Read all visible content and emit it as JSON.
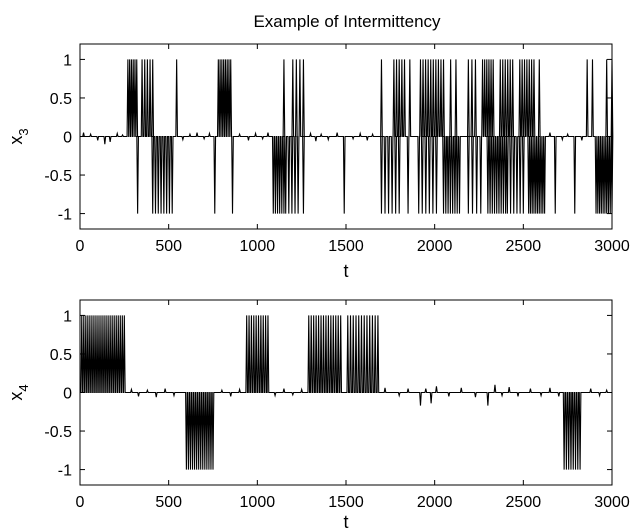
{
  "figure": {
    "title": "Example of Intermittency"
  },
  "chart_data": [
    {
      "type": "line",
      "title": "Example of Intermittency",
      "xlabel": "t",
      "ylabel_base": "x",
      "ylabel_sub": "3",
      "xlim": [
        0,
        3000
      ],
      "ylim": [
        -1.2,
        1.2
      ],
      "grid": false,
      "legend": "none",
      "x_ticks": [
        0,
        500,
        1000,
        1500,
        2000,
        2500,
        3000
      ],
      "x_tick_labels": [
        "0",
        "500",
        "1000",
        "1500",
        "2000",
        "2500",
        "3000"
      ],
      "y_ticks": [
        1,
        0.5,
        0,
        -0.5,
        -1
      ],
      "y_tick_labels": [
        "1",
        "0.5",
        "0",
        "-0.5",
        "-1"
      ],
      "series": [
        {
          "color": "#000000",
          "bursts_up": [
            [
              270,
              320,
              6
            ],
            [
              350,
              410,
              5
            ],
            [
              545,
              555,
              1
            ],
            [
              780,
              850,
              8
            ],
            [
              1150,
              1160,
              1
            ],
            [
              1200,
              1260,
              4
            ],
            [
              1700,
              1720,
              1
            ],
            [
              1770,
              1830,
              5
            ],
            [
              1860,
              1880,
              1
            ],
            [
              1920,
              2050,
              10
            ],
            [
              2090,
              2120,
              2
            ],
            [
              2190,
              2230,
              3
            ],
            [
              2270,
              2330,
              6
            ],
            [
              2370,
              2440,
              6
            ],
            [
              2480,
              2560,
              7
            ],
            [
              2590,
              2620,
              1
            ],
            [
              2860,
              2890,
              2
            ],
            [
              2970,
              3000,
              2
            ]
          ],
          "bursts_down": [
            [
              325,
              330,
              1
            ],
            [
              410,
              520,
              8
            ],
            [
              760,
              770,
              1
            ],
            [
              860,
              880,
              1
            ],
            [
              1090,
              1150,
              6
            ],
            [
              1160,
              1230,
              5
            ],
            [
              1260,
              1280,
              1
            ],
            [
              1490,
              1500,
              1
            ],
            [
              1700,
              1800,
              6
            ],
            [
              1850,
              1870,
              1
            ],
            [
              1910,
              2010,
              6
            ],
            [
              2050,
              2140,
              8
            ],
            [
              2190,
              2260,
              4
            ],
            [
              2300,
              2400,
              9
            ],
            [
              2410,
              2500,
              6
            ],
            [
              2530,
              2620,
              10
            ],
            [
              2680,
              2700,
              1
            ],
            [
              2790,
              2810,
              1
            ],
            [
              2910,
              3000,
              10
            ]
          ],
          "noise_spikes": [
            [
              20,
              0.05
            ],
            [
              60,
              0.03
            ],
            [
              100,
              -0.05
            ],
            [
              140,
              -0.1
            ],
            [
              170,
              -0.07
            ],
            [
              210,
              0.04
            ],
            [
              240,
              0.02
            ],
            [
              580,
              -0.04
            ],
            [
              620,
              0.03
            ],
            [
              660,
              0.05
            ],
            [
              700,
              -0.03
            ],
            [
              730,
              0.04
            ],
            [
              900,
              0.03
            ],
            [
              950,
              -0.05
            ],
            [
              990,
              0.04
            ],
            [
              1030,
              -0.03
            ],
            [
              1060,
              0.05
            ],
            [
              1300,
              0.04
            ],
            [
              1330,
              -0.06
            ],
            [
              1360,
              0.03
            ],
            [
              1400,
              -0.04
            ],
            [
              1450,
              0.05
            ],
            [
              1540,
              -0.03
            ],
            [
              1580,
              0.04
            ],
            [
              1620,
              -0.05
            ],
            [
              1650,
              0.03
            ],
            [
              2650,
              0.05
            ],
            [
              2720,
              -0.04
            ],
            [
              2750,
              0.03
            ],
            [
              2830,
              -0.05
            ]
          ]
        }
      ]
    },
    {
      "type": "line",
      "title": "",
      "xlabel": "t",
      "ylabel_base": "x",
      "ylabel_sub": "4",
      "xlim": [
        0,
        3000
      ],
      "ylim": [
        -1.2,
        1.2
      ],
      "grid": false,
      "legend": "none",
      "x_ticks": [
        0,
        500,
        1000,
        1500,
        2000,
        2500,
        3000
      ],
      "x_tick_labels": [
        "0",
        "500",
        "1000",
        "1500",
        "2000",
        "2500",
        "3000"
      ],
      "y_ticks": [
        1,
        0.5,
        0,
        -0.5,
        -1
      ],
      "y_tick_labels": [
        "1",
        "0.5",
        "0",
        "-0.5",
        "-1"
      ],
      "series": [
        {
          "color": "#000000",
          "bursts_up": [
            [
              10,
              250,
              22
            ],
            [
              940,
              1060,
              10
            ],
            [
              1290,
              1470,
              14
            ],
            [
              1510,
              1680,
              12
            ]
          ],
          "bursts_down": [
            [
              600,
              750,
              14
            ],
            [
              2730,
              2820,
              8
            ]
          ],
          "noise_spikes": [
            [
              290,
              0.04
            ],
            [
              330,
              -0.05
            ],
            [
              380,
              0.03
            ],
            [
              430,
              -0.06
            ],
            [
              480,
              0.05
            ],
            [
              530,
              -0.04
            ],
            [
              800,
              0.03
            ],
            [
              850,
              -0.05
            ],
            [
              900,
              0.04
            ],
            [
              1100,
              -0.04
            ],
            [
              1150,
              0.05
            ],
            [
              1200,
              -0.03
            ],
            [
              1250,
              0.04
            ],
            [
              1720,
              0.06
            ],
            [
              1800,
              -0.04
            ],
            [
              1850,
              0.05
            ],
            [
              1920,
              -0.17
            ],
            [
              1950,
              0.05
            ],
            [
              1980,
              -0.14
            ],
            [
              2010,
              0.08
            ],
            [
              2080,
              -0.05
            ],
            [
              2150,
              0.06
            ],
            [
              2230,
              -0.06
            ],
            [
              2300,
              -0.17
            ],
            [
              2340,
              0.1
            ],
            [
              2380,
              -0.04
            ],
            [
              2420,
              0.07
            ],
            [
              2470,
              -0.05
            ],
            [
              2540,
              0.05
            ],
            [
              2600,
              -0.04
            ],
            [
              2650,
              0.06
            ],
            [
              2700,
              -0.05
            ],
            [
              2880,
              0.05
            ],
            [
              2930,
              -0.04
            ],
            [
              2970,
              0.03
            ]
          ]
        }
      ]
    }
  ]
}
